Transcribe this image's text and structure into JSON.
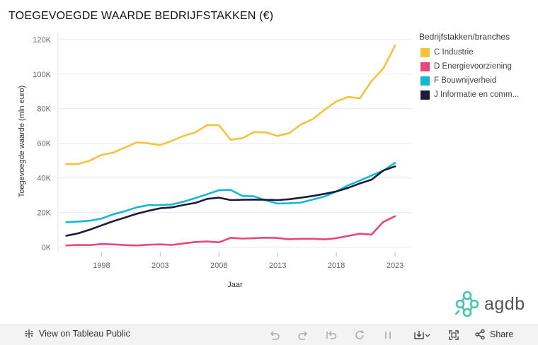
{
  "title": "TOEGEVOEGDE WAARDE BEDRIJFSTAKKEN (€)",
  "legend": {
    "title": "Bedrijfstakken/branches",
    "items": [
      {
        "label": "C Industrie",
        "color": "#f8c23a"
      },
      {
        "label": "D Energievoorziening",
        "color": "#e8487a"
      },
      {
        "label": "F Bouwnijverheid",
        "color": "#13b9d3"
      },
      {
        "label": "J Informatie en comm...",
        "color": "#1e1a3a"
      }
    ]
  },
  "chart_data": {
    "type": "line",
    "title": "TOEGEVOEGDE WAARDE BEDRIJFSTAKKEN (€)",
    "xlabel": "Jaar",
    "ylabel": "Toegevoegde waarde (mln euro)",
    "x": [
      1995,
      1996,
      1997,
      1998,
      1999,
      2000,
      2001,
      2002,
      2003,
      2004,
      2005,
      2006,
      2007,
      2008,
      2009,
      2010,
      2011,
      2012,
      2013,
      2014,
      2015,
      2016,
      2017,
      2018,
      2019,
      2020,
      2021,
      2022,
      2023
    ],
    "xlim": [
      1994.3,
      2024.5
    ],
    "ylim": [
      -3000,
      124000
    ],
    "xticks": [
      1998,
      2003,
      2008,
      2013,
      2018,
      2023
    ],
    "xtick_labels": [
      "1998",
      "2003",
      "2008",
      "2013",
      "2018",
      "2023"
    ],
    "yticks": [
      0,
      20000,
      40000,
      60000,
      80000,
      100000,
      120000
    ],
    "ytick_labels": [
      "0K",
      "20K",
      "40K",
      "60K",
      "80K",
      "100K",
      "120K"
    ],
    "grid": true,
    "legend_position": "right",
    "series": [
      {
        "name": "C Industrie",
        "color": "#f8c23a",
        "values": [
          48000,
          48000,
          50000,
          53300,
          54600,
          57600,
          60500,
          60000,
          59000,
          61500,
          64300,
          66300,
          70600,
          70500,
          62000,
          63000,
          66500,
          66300,
          64300,
          65900,
          71000,
          74000,
          79400,
          84200,
          86800,
          86000,
          96000,
          103200,
          116500
        ]
      },
      {
        "name": "D Energievoorziening",
        "color": "#e8487a",
        "values": [
          1000,
          1300,
          1200,
          1800,
          1600,
          1200,
          1000,
          1400,
          1600,
          1300,
          2200,
          3000,
          3300,
          2800,
          5400,
          5000,
          5200,
          5500,
          5300,
          4600,
          4900,
          4900,
          4500,
          5200,
          6500,
          7800,
          7300,
          14600,
          17900
        ]
      },
      {
        "name": "F Bouwnijverheid",
        "color": "#13b9d3",
        "values": [
          14400,
          14800,
          15300,
          16500,
          19000,
          20800,
          23000,
          24300,
          24400,
          24700,
          26300,
          28400,
          30600,
          32900,
          33100,
          29600,
          29400,
          27000,
          25200,
          25400,
          25800,
          27500,
          29300,
          32200,
          35700,
          38500,
          41400,
          44300,
          48700
        ]
      },
      {
        "name": "J Informatie en comm...",
        "color": "#1e1a3a",
        "values": [
          6600,
          8000,
          10100,
          12600,
          15000,
          17100,
          19300,
          21000,
          22500,
          23000,
          24400,
          25600,
          27900,
          28600,
          27200,
          27400,
          27500,
          27400,
          27200,
          27700,
          28600,
          29600,
          30800,
          32200,
          34300,
          36800,
          39000,
          44300,
          46700
        ]
      }
    ]
  },
  "brand": {
    "name": "agdb"
  },
  "footer": {
    "view_label": "View on Tableau Public",
    "share_label": "Share"
  }
}
